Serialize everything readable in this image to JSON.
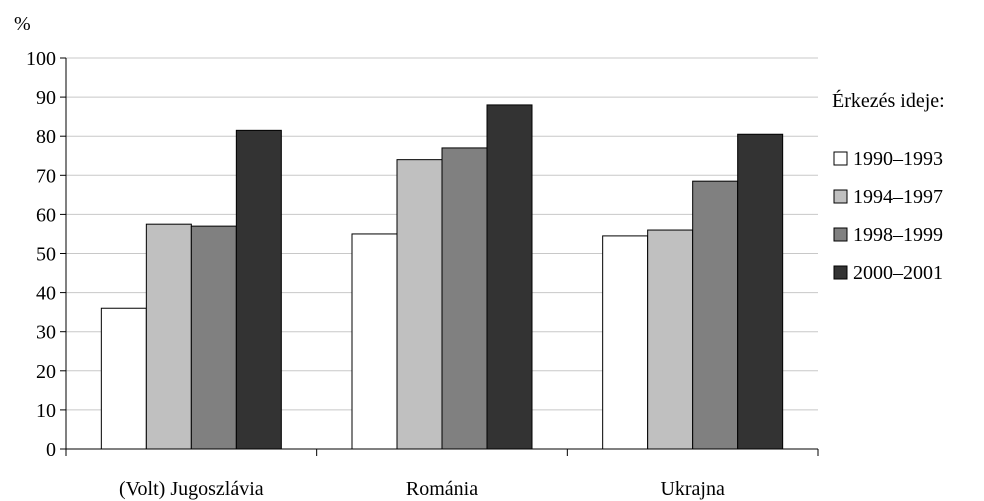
{
  "chart_data": {
    "type": "bar",
    "title": "",
    "xlabel": "",
    "ylabel": "%",
    "ylim": [
      0,
      100
    ],
    "yticks": [
      "0",
      "10",
      "20",
      "30",
      "40",
      "50",
      "60",
      "70",
      "80",
      "90",
      "100"
    ],
    "grid": true,
    "legend_position": "right",
    "legend_title": "Érkezés ideje:",
    "categories": [
      "(Volt) Jugoszlávia",
      "Románia",
      "Ukrajna"
    ],
    "series": [
      {
        "name": "1990–1993",
        "color": "#ffffff",
        "values": [
          36,
          55,
          54.5
        ]
      },
      {
        "name": "1994–1997",
        "color": "#c0c0c0",
        "values": [
          57.5,
          74,
          56
        ]
      },
      {
        "name": "1998–1999",
        "color": "#808080",
        "values": [
          57,
          77,
          68.5
        ]
      },
      {
        "name": "2000–2001",
        "color": "#333333",
        "values": [
          81.5,
          88,
          80.5
        ]
      }
    ]
  }
}
